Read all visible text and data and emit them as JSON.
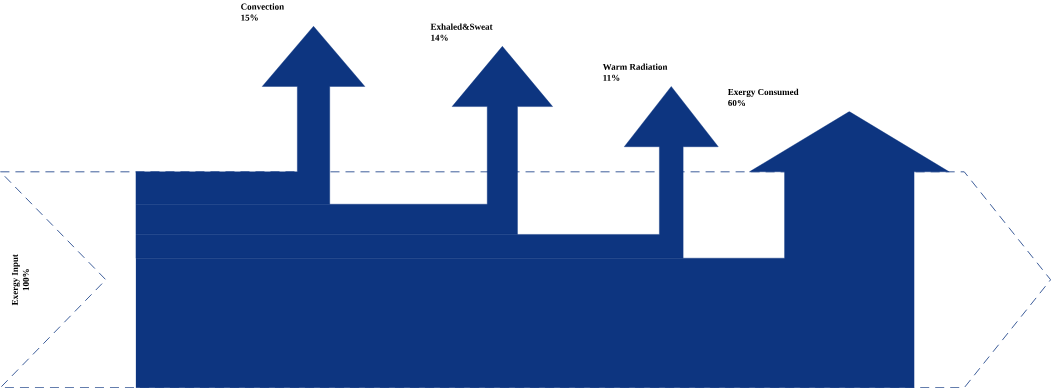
{
  "chart_data": {
    "type": "other",
    "color": "#0d3580",
    "categories": [
      "Exergy Input",
      "Convection",
      "Exhaled&Sweat",
      "Warm Radiation",
      "Exergy Consumed"
    ],
    "values": [
      100,
      15,
      14,
      11,
      60
    ],
    "value_labels": [
      "100%",
      "15%",
      "14%",
      "11%",
      "60%"
    ]
  }
}
